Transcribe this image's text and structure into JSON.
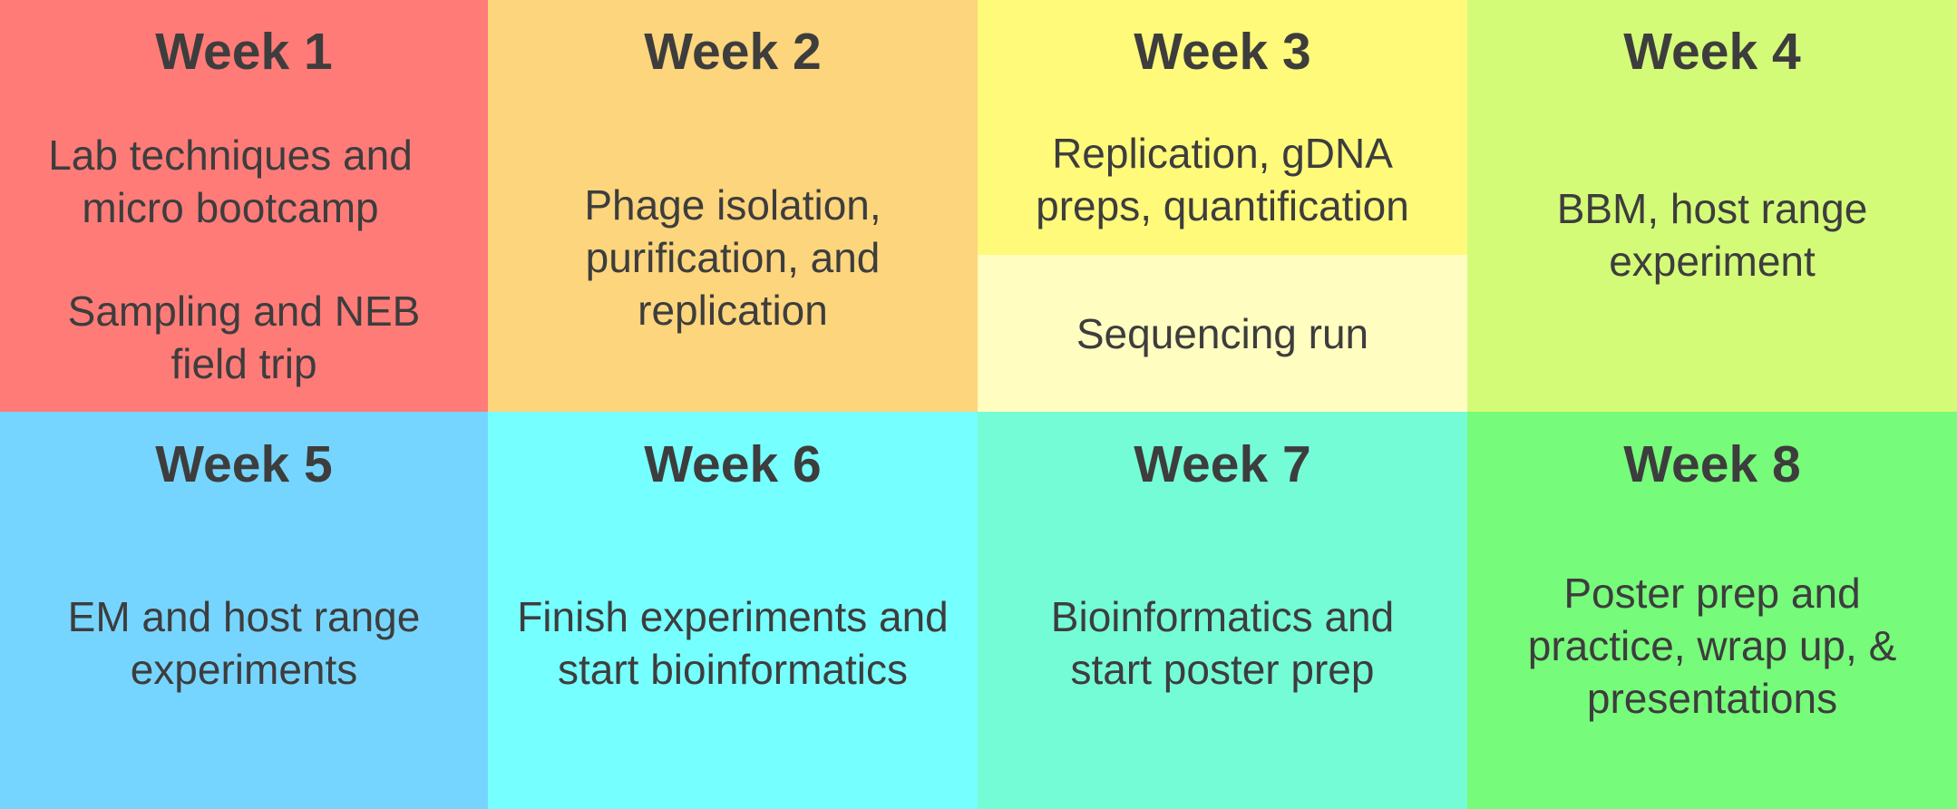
{
  "weeks": [
    {
      "title": "Week 1",
      "lines": [
        "Lab techniques and micro bootcamp",
        "Sampling and NEB field trip"
      ]
    },
    {
      "title": "Week 2",
      "lines": [
        "Phage isolation, purification, and replication"
      ]
    },
    {
      "title": "Week 3",
      "lines": [
        "Replication, gDNA preps, quantification",
        "Sequencing run"
      ]
    },
    {
      "title": "Week 4",
      "lines": [
        "BBM, host range experiment"
      ]
    },
    {
      "title": "Week 5",
      "lines": [
        "EM and host range experiments"
      ]
    },
    {
      "title": "Week 6",
      "lines": [
        "Finish experiments and start bioinformatics"
      ]
    },
    {
      "title": "Week 7",
      "lines": [
        "Bioinformatics and start poster prep"
      ]
    },
    {
      "title": "Week 8",
      "lines": [
        "Poster prep and practice, wrap up, & presentations"
      ]
    }
  ],
  "colors": {
    "week1": "#ff7b78",
    "week2": "#fcd57c",
    "week3": "#fffa7a",
    "week3_sub": "#fffdc0",
    "week4": "#d4fb78",
    "week5": "#76d5fe",
    "week6": "#76ffff",
    "week7": "#74fcd6",
    "week8": "#76fb7a",
    "text": "#3d3d3d"
  }
}
